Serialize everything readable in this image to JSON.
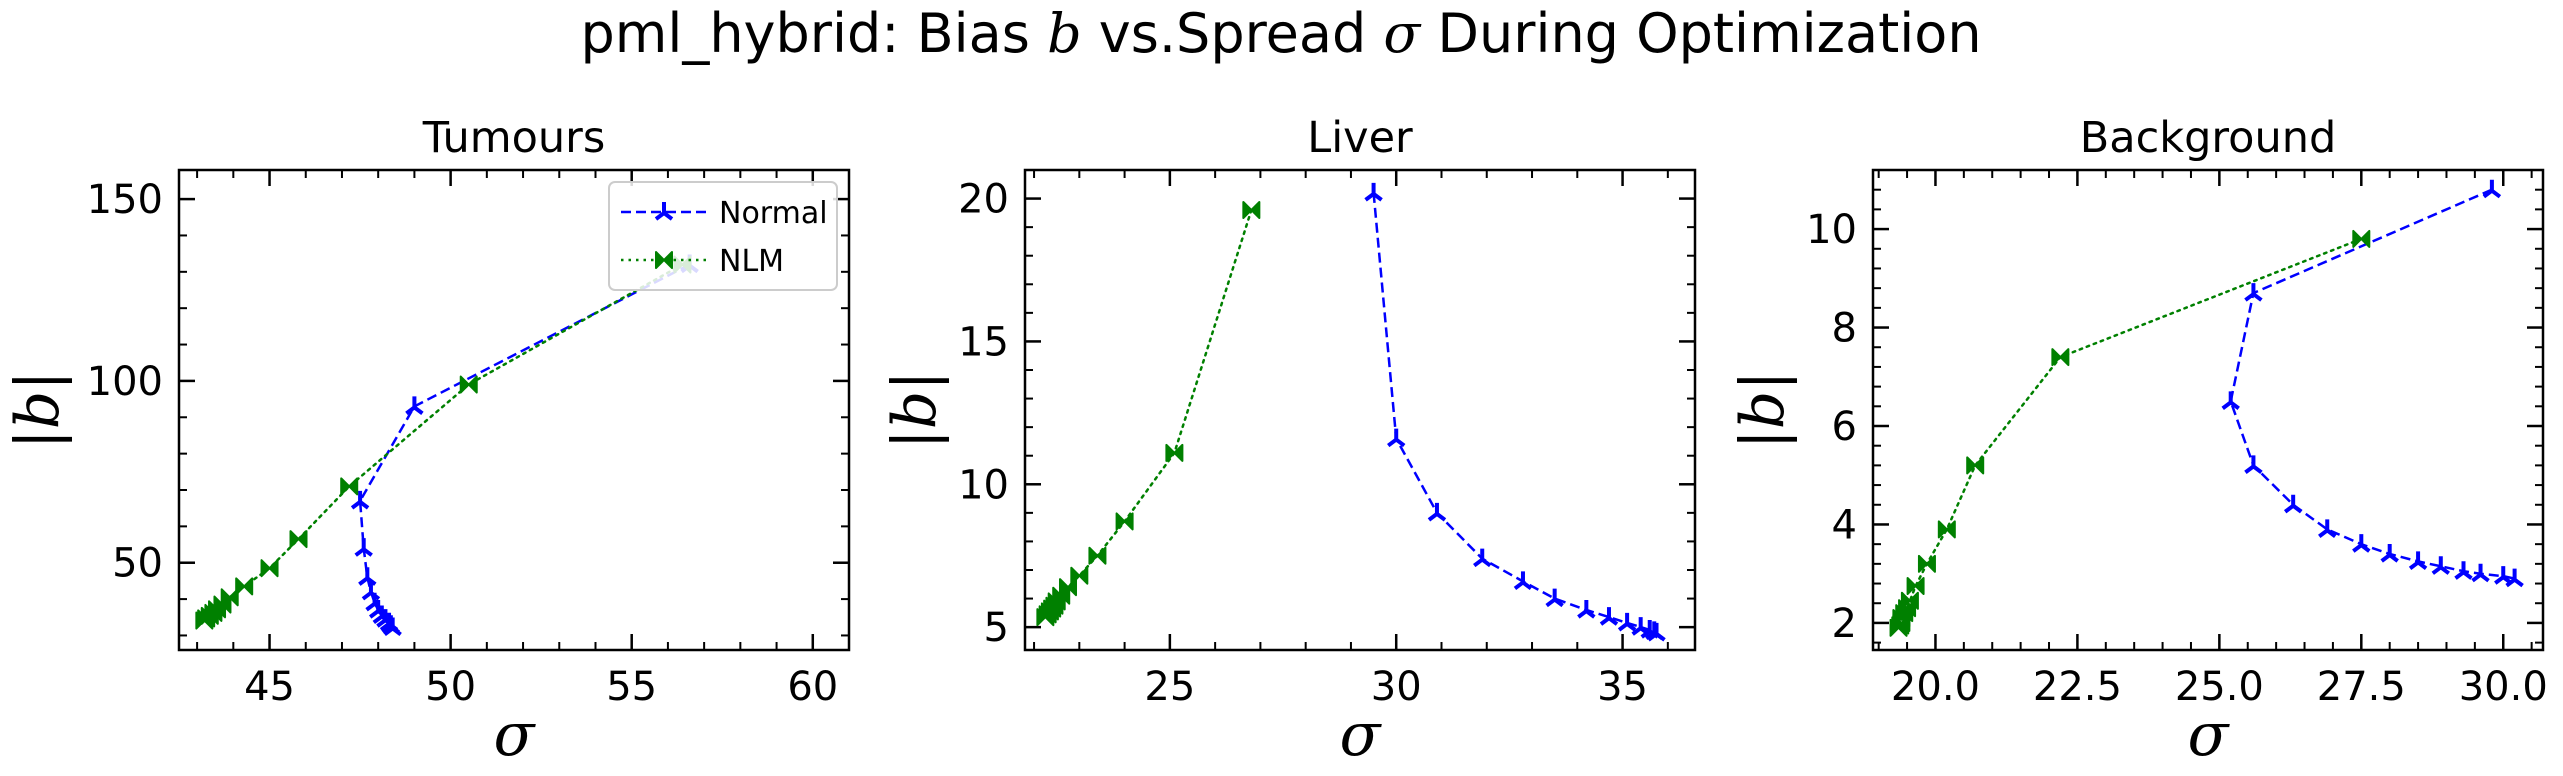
{
  "figure": {
    "title_prefix": "pml_hybrid: Bias ",
    "title_b": "b",
    "title_mid": " vs.Spread ",
    "title_sigma": "σ",
    "title_suffix": " During Optimization"
  },
  "colors": {
    "normal": "#0000ff",
    "nlm": "#008000"
  },
  "chart_data": [
    {
      "type": "line",
      "title": "Tumours",
      "xlabel": "σ",
      "ylabel": "|b|",
      "xlim": [
        42.5,
        61
      ],
      "ylim": [
        26,
        158
      ],
      "xticks": [
        45,
        50,
        55,
        60
      ],
      "xtick_labels": [
        "45",
        "50",
        "55",
        "60"
      ],
      "yticks": [
        50,
        100,
        150
      ],
      "ytick_labels": [
        "50",
        "100",
        "150"
      ],
      "legend": "top-right",
      "series": [
        {
          "name": "Normal",
          "style": "dashed",
          "marker": "tri-up",
          "color": "#0000ff",
          "points": [
            [
              56.6,
              132
            ],
            [
              49.0,
              93
            ],
            [
              47.5,
              67
            ],
            [
              47.6,
              54
            ],
            [
              47.7,
              46
            ],
            [
              47.8,
              42
            ],
            [
              47.9,
              39
            ],
            [
              48.0,
              37
            ],
            [
              48.1,
              35.5
            ],
            [
              48.2,
              34.5
            ],
            [
              48.3,
              33.5
            ],
            [
              48.35,
              32.8
            ],
            [
              48.4,
              32.2
            ]
          ]
        },
        {
          "name": "NLM",
          "style": "dotted",
          "marker": "bowtie",
          "color": "#008000",
          "points": [
            [
              56.4,
              132
            ],
            [
              50.5,
              99
            ],
            [
              47.2,
              71
            ],
            [
              45.8,
              56.5
            ],
            [
              45.0,
              48.5
            ],
            [
              44.3,
              43.5
            ],
            [
              43.9,
              40.5
            ],
            [
              43.7,
              38.5
            ],
            [
              43.55,
              37.2
            ],
            [
              43.45,
              36.2
            ],
            [
              43.35,
              35.4
            ],
            [
              43.25,
              34.7
            ],
            [
              43.2,
              34.1
            ]
          ]
        }
      ]
    },
    {
      "type": "line",
      "title": "Liver",
      "xlabel": "σ",
      "ylabel": "|b|",
      "xlim": [
        21.8,
        36.6
      ],
      "ylim": [
        4.2,
        21
      ],
      "xticks": [
        25,
        30,
        35
      ],
      "xtick_labels": [
        "25",
        "30",
        "35"
      ],
      "yticks": [
        5,
        10,
        15,
        20
      ],
      "ytick_labels": [
        "5",
        "10",
        "15",
        "20"
      ],
      "series": [
        {
          "name": "Normal",
          "style": "dashed",
          "marker": "tri-up",
          "color": "#0000ff",
          "points": [
            [
              29.5,
              20.2
            ],
            [
              30.0,
              11.6
            ],
            [
              30.9,
              9.0
            ],
            [
              31.9,
              7.4
            ],
            [
              32.8,
              6.6
            ],
            [
              33.5,
              6.0
            ],
            [
              34.2,
              5.6
            ],
            [
              34.7,
              5.35
            ],
            [
              35.1,
              5.15
            ],
            [
              35.4,
              5.0
            ],
            [
              35.6,
              4.9
            ],
            [
              35.7,
              4.85
            ],
            [
              35.75,
              4.8
            ]
          ]
        },
        {
          "name": "NLM",
          "style": "dotted",
          "marker": "bowtie",
          "color": "#008000",
          "points": [
            [
              26.8,
              19.6
            ],
            [
              25.1,
              11.1
            ],
            [
              24.0,
              8.7
            ],
            [
              23.4,
              7.5
            ],
            [
              23.0,
              6.8
            ],
            [
              22.75,
              6.4
            ],
            [
              22.6,
              6.1
            ],
            [
              22.5,
              5.9
            ],
            [
              22.45,
              5.75
            ],
            [
              22.4,
              5.65
            ],
            [
              22.35,
              5.55
            ],
            [
              22.3,
              5.45
            ],
            [
              22.25,
              5.35
            ]
          ]
        }
      ]
    },
    {
      "type": "line",
      "title": "Background",
      "xlabel": "σ",
      "ylabel": "|b|",
      "xlim": [
        18.9,
        30.7
      ],
      "ylim": [
        1.45,
        11.2
      ],
      "xticks": [
        20.0,
        22.5,
        25.0,
        27.5,
        30.0
      ],
      "xtick_labels": [
        "20.0",
        "22.5",
        "25.0",
        "27.5",
        "30.0"
      ],
      "yticks": [
        2,
        4,
        6,
        8,
        10
      ],
      "ytick_labels": [
        "2",
        "4",
        "6",
        "8",
        "10"
      ],
      "series": [
        {
          "name": "Normal",
          "style": "dashed",
          "marker": "tri-up",
          "color": "#0000ff",
          "points": [
            [
              29.8,
              10.8
            ],
            [
              25.6,
              8.7
            ],
            [
              25.2,
              6.5
            ],
            [
              25.6,
              5.2
            ],
            [
              26.3,
              4.4
            ],
            [
              26.9,
              3.9
            ],
            [
              27.5,
              3.6
            ],
            [
              28.0,
              3.4
            ],
            [
              28.5,
              3.25
            ],
            [
              28.9,
              3.15
            ],
            [
              29.3,
              3.05
            ],
            [
              29.6,
              3.0
            ],
            [
              30.0,
              2.95
            ],
            [
              30.2,
              2.9
            ]
          ]
        },
        {
          "name": "NLM",
          "style": "dotted",
          "marker": "bowtie",
          "color": "#008000",
          "points": [
            [
              27.5,
              9.8
            ],
            [
              22.2,
              7.4
            ],
            [
              20.7,
              5.2
            ],
            [
              20.2,
              3.9
            ],
            [
              19.85,
              3.2
            ],
            [
              19.65,
              2.75
            ],
            [
              19.55,
              2.45
            ],
            [
              19.5,
              2.3
            ],
            [
              19.45,
              2.2
            ],
            [
              19.4,
              2.1
            ],
            [
              19.4,
              2.0
            ],
            [
              19.38,
              1.95
            ],
            [
              19.35,
              1.9
            ]
          ]
        }
      ]
    }
  ]
}
